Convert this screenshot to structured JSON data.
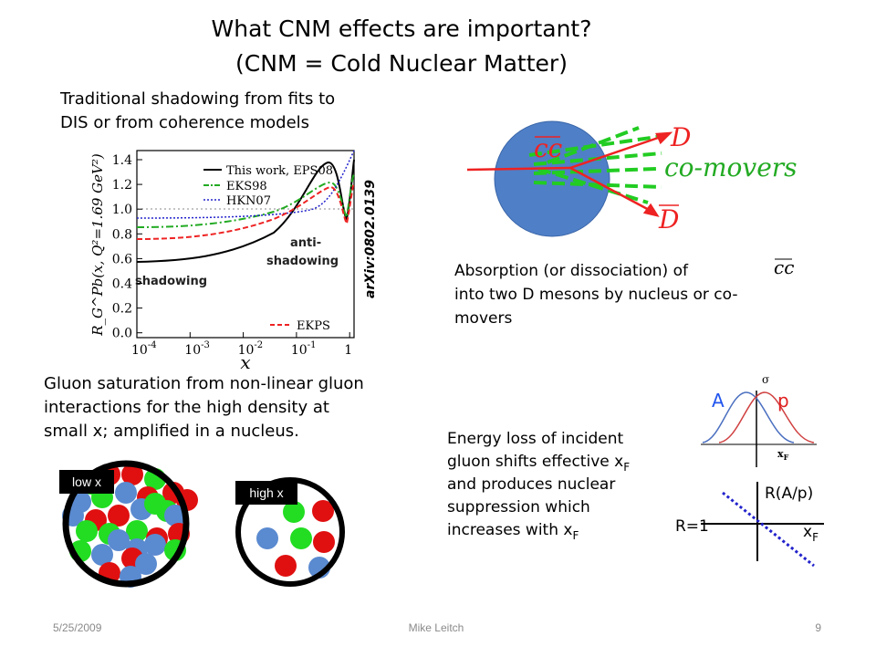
{
  "header": {
    "title": "What CNM effects are important?",
    "subtitle": "(CNM = Cold Nuclear Matter)"
  },
  "shadowing": {
    "lines": [
      "Traditional shadowing from fits to",
      "DIS or from coherence models"
    ],
    "plot": {
      "y_label": "R_G^Pb(x, Q²=1.69 GeV²)",
      "x_label": "x",
      "yticks": [
        "1.4",
        "1.2",
        "1.0",
        "0.8",
        "0.6",
        "0.4",
        "0.2",
        "0.0"
      ],
      "xticks": [
        {
          "base": "10",
          "exp": "-4"
        },
        {
          "base": "10",
          "exp": "-3"
        },
        {
          "base": "10",
          "exp": "-2"
        },
        {
          "base": "10",
          "exp": "-1"
        },
        {
          "base": "1",
          "exp": ""
        }
      ],
      "legend": [
        "This work, EPS08",
        "EKS98",
        "HKN07",
        "EKPS"
      ],
      "annotations": [
        "shadowing",
        "anti-",
        "shadowing"
      ],
      "reference": "arXiv:0802.0139"
    }
  },
  "absorption": {
    "diagram": {
      "pair": "cc",
      "meson": "D",
      "comovers": "co-movers",
      "anti_meson": "D"
    },
    "lines": [
      "Absorption (or dissociation) of",
      "into two D mesons by nucleus or co-",
      "movers"
    ],
    "pair": "cc"
  },
  "saturation": {
    "lines": [
      "Gluon saturation from non-linear gluon",
      "interactions for the high density at",
      "small x; amplified in a nucleus."
    ],
    "labels": [
      "low x",
      "high x"
    ]
  },
  "energy_loss": {
    "lines": [
      "Energy loss of incident",
      "gluon shifts effective x",
      "and produces nuclear",
      "suppression which",
      "increases with x"
    ],
    "subscripts": [
      "F",
      "F"
    ],
    "sketch": {
      "sigma": "σ",
      "a": "A",
      "p": "p",
      "xf_top": "x",
      "xf_top_sub": "F",
      "ratio": "R(A/p)",
      "unity": "R=1",
      "xf": "x",
      "xf_sub": "F"
    }
  },
  "footer": {
    "date": "5/25/2009",
    "author": "Mike Leitch",
    "page": "9"
  }
}
